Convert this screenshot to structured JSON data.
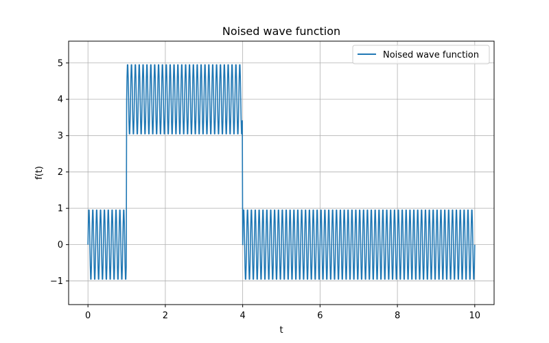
{
  "chart_data": {
    "type": "line",
    "title": "Noised wave function",
    "xlabel": "t",
    "ylabel": "f(t)",
    "xlim": [
      -0.5,
      10.5
    ],
    "ylim": [
      -1.65,
      5.6
    ],
    "xticks": [
      0,
      2,
      4,
      6,
      8,
      10
    ],
    "xtick_labels": [
      "0",
      "2",
      "4",
      "6",
      "8",
      "10"
    ],
    "yticks": [
      -1,
      0,
      1,
      2,
      3,
      4,
      5
    ],
    "ytick_labels": [
      "−1",
      "0",
      "1",
      "2",
      "3",
      "4",
      "5"
    ],
    "grid": true,
    "legend_position": "top-right",
    "series": [
      {
        "name": "Noised wave function",
        "color": "#1f77b4",
        "description": "square wave with levels 0 / 4 / 0 plus high-frequency sine of amplitude 1",
        "segments": [
          {
            "t_start": 0,
            "t_end": 1,
            "baseline": 0
          },
          {
            "t_start": 1,
            "t_end": 4,
            "baseline": 4
          },
          {
            "t_start": 4,
            "t_end": 10,
            "baseline": 0
          }
        ],
        "oscillation_amplitude": 1,
        "oscillation_frequency": 10
      }
    ]
  }
}
